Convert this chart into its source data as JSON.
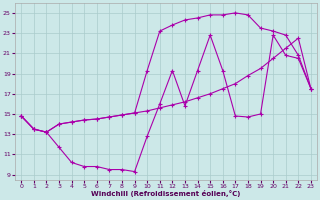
{
  "xlabel": "Windchill (Refroidissement éolien,°C)",
  "bg_color": "#cce8e8",
  "grid_color": "#aacccc",
  "line_color": "#aa00aa",
  "x_ticks": [
    0,
    1,
    2,
    3,
    4,
    5,
    6,
    7,
    8,
    9,
    10,
    11,
    12,
    13,
    14,
    15,
    16,
    17,
    18,
    19,
    20,
    21,
    22,
    23
  ],
  "y_ticks": [
    9,
    11,
    13,
    15,
    17,
    19,
    21,
    23,
    25
  ],
  "xlim": [
    -0.5,
    23.5
  ],
  "ylim": [
    8.5,
    26.0
  ],
  "line1_x": [
    0,
    1,
    2,
    3,
    4,
    5,
    6,
    7,
    8,
    9,
    10,
    11,
    12,
    13,
    14,
    15,
    16,
    17,
    18,
    19,
    20,
    21,
    22,
    23
  ],
  "line1_y": [
    14.8,
    13.5,
    13.2,
    11.7,
    10.2,
    9.8,
    9.8,
    9.5,
    9.5,
    9.3,
    12.8,
    16.0,
    19.3,
    15.8,
    19.3,
    22.8,
    19.3,
    14.8,
    14.7,
    15.0,
    22.8,
    20.8,
    20.5,
    17.5
  ],
  "line2_x": [
    0,
    1,
    2,
    3,
    4,
    5,
    6,
    7,
    8,
    9,
    10,
    11,
    12,
    13,
    14,
    15,
    16,
    17,
    18,
    19,
    20,
    21,
    22,
    23
  ],
  "line2_y": [
    14.8,
    13.5,
    13.2,
    14.0,
    14.2,
    14.4,
    14.5,
    14.7,
    14.9,
    15.1,
    15.3,
    15.6,
    15.9,
    16.2,
    16.6,
    17.0,
    17.5,
    18.0,
    18.8,
    19.5,
    20.5,
    21.5,
    22.5,
    17.5
  ],
  "line3_x": [
    0,
    1,
    2,
    3,
    4,
    5,
    6,
    7,
    8,
    9,
    10,
    11,
    12,
    13,
    14,
    15,
    16,
    17,
    18,
    19,
    20,
    21,
    22,
    23
  ],
  "line3_y": [
    14.8,
    13.5,
    13.2,
    14.0,
    14.2,
    14.4,
    14.5,
    14.7,
    14.9,
    15.1,
    19.3,
    23.2,
    23.8,
    24.3,
    24.5,
    24.8,
    24.8,
    25.0,
    24.8,
    23.5,
    23.2,
    22.8,
    20.8,
    17.5
  ]
}
